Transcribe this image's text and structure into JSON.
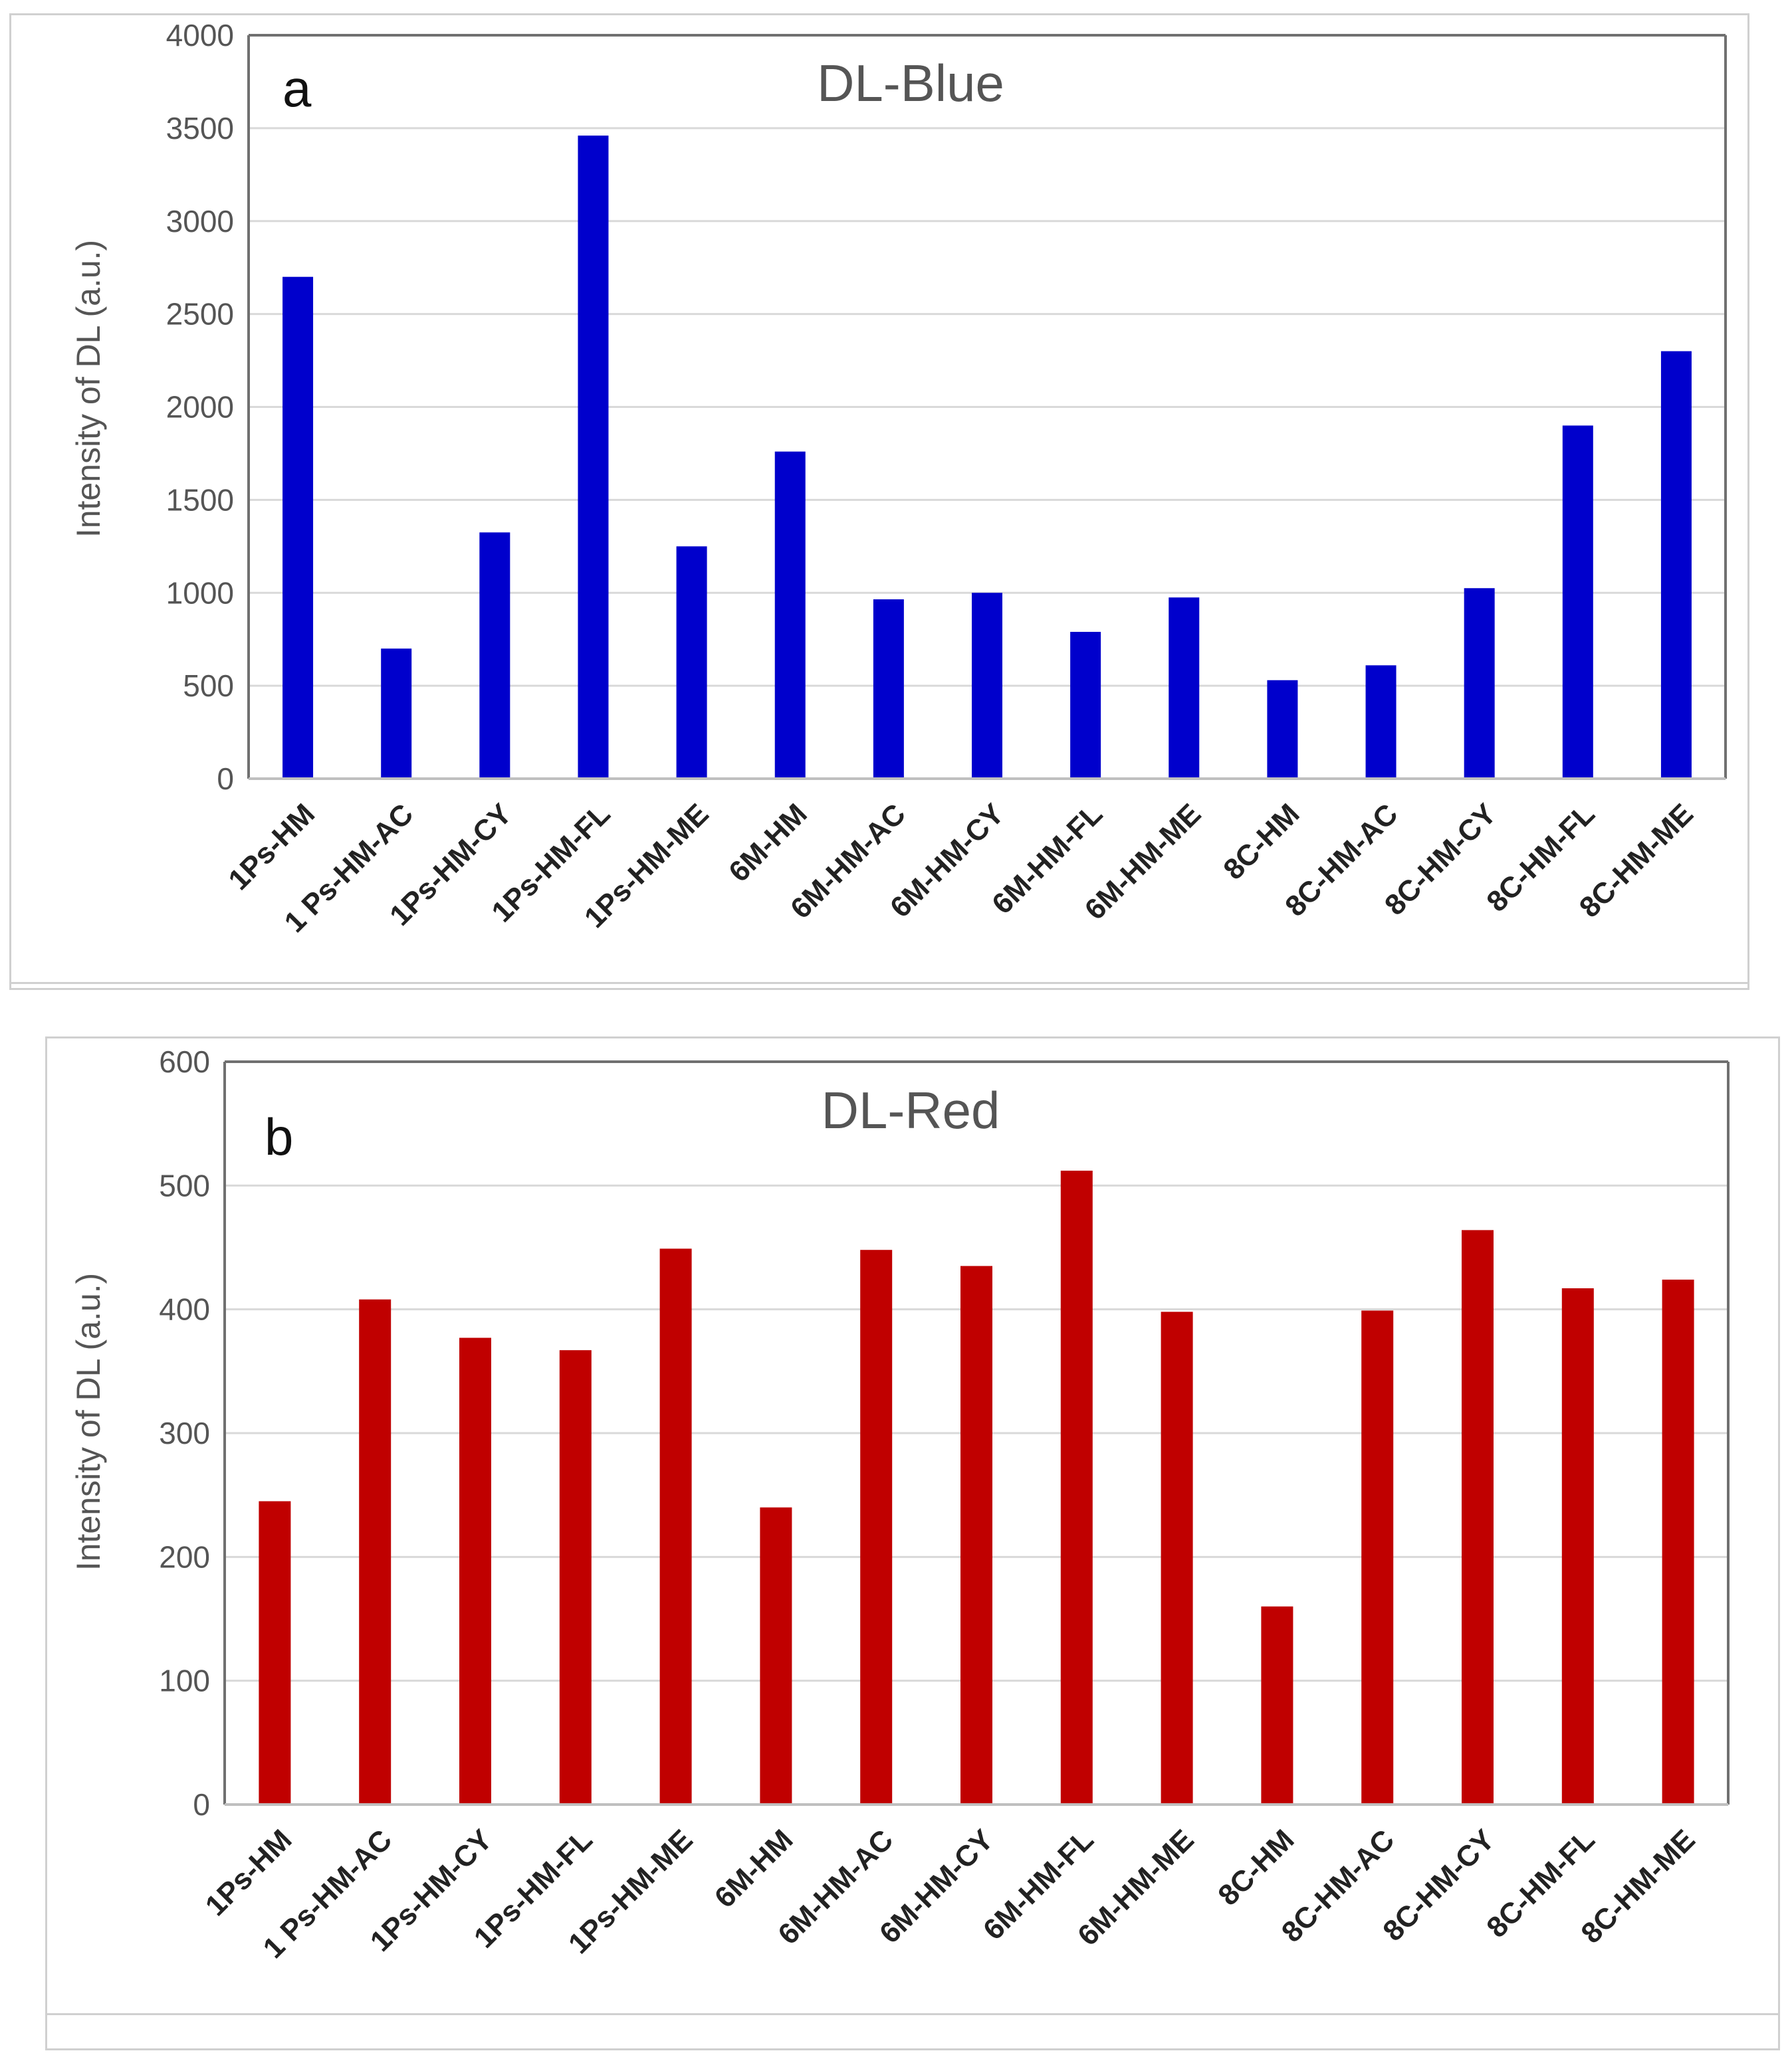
{
  "chart_data": [
    {
      "type": "bar",
      "panel_letter": "a",
      "title": "DL-Blue",
      "xlabel": "",
      "ylabel": "Intensity of DL (a.u.)",
      "ylim": [
        0,
        4000
      ],
      "yticks": [
        0,
        500,
        1000,
        1500,
        2000,
        2500,
        3000,
        3500,
        4000
      ],
      "grid": true,
      "bar_color": "#0000CC",
      "categories": [
        "1Ps-HM",
        "1 Ps-HM-AC",
        "1Ps-HM-CY",
        "1Ps-HM-FL",
        "1Ps-HM-ME",
        "6M-HM",
        "6M-HM-AC",
        "6M-HM-CY",
        "6M-HM-FL",
        "6M-HM-ME",
        "8C-HM",
        "8C-HM-AC",
        "8C-HM-CY",
        "8C-HM-FL",
        "8C-HM-ME"
      ],
      "values": [
        2700,
        700,
        1325,
        3460,
        1250,
        1760,
        965,
        1000,
        790,
        975,
        530,
        610,
        1025,
        1900,
        2300
      ]
    },
    {
      "type": "bar",
      "panel_letter": "b",
      "title": "DL-Red",
      "xlabel": "",
      "ylabel": "Intensity of DL (a.u.)",
      "ylim": [
        0,
        600
      ],
      "yticks": [
        0,
        100,
        200,
        300,
        400,
        500,
        600
      ],
      "grid": true,
      "bar_color": "#C00000",
      "categories": [
        "1Ps-HM",
        "1 Ps-HM-AC",
        "1Ps-HM-CY",
        "1Ps-HM-FL",
        "1Ps-HM-ME",
        "6M-HM",
        "6M-HM-AC",
        "6M-HM-CY",
        "6M-HM-FL",
        "6M-HM-ME",
        "8C-HM",
        "8C-HM-AC",
        "8C-HM-CY",
        "8C-HM-FL",
        "8C-HM-ME"
      ],
      "values": [
        245,
        408,
        377,
        367,
        449,
        240,
        448,
        435,
        512,
        398,
        160,
        399,
        464,
        417,
        424
      ]
    }
  ]
}
